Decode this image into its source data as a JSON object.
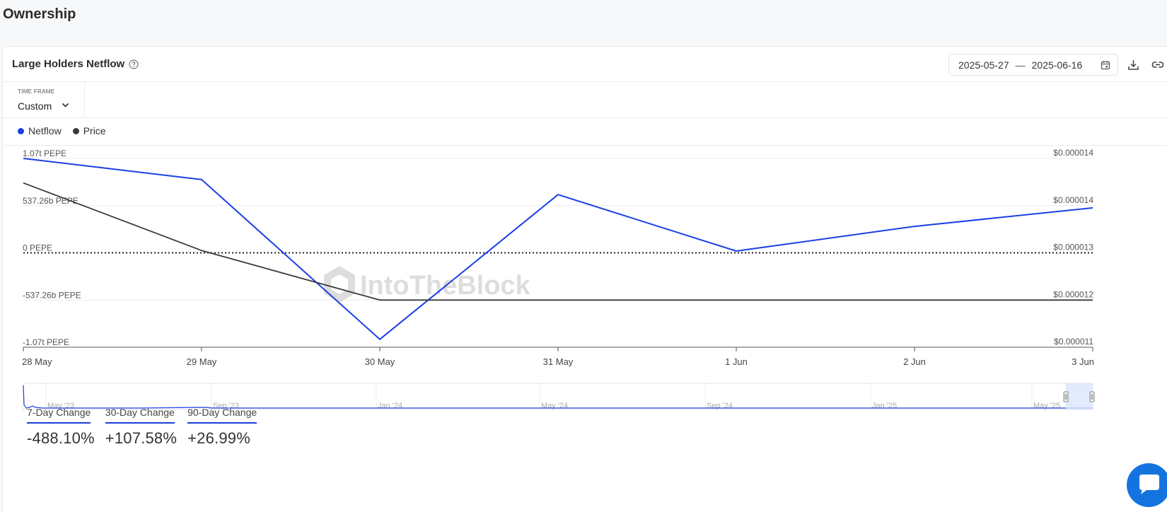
{
  "page": {
    "title": "Ownership"
  },
  "card": {
    "title": "Large Holders Netflow",
    "date_start": "2025-05-27",
    "date_sep": "—",
    "date_end": "2025-06-16"
  },
  "timeframe": {
    "label": "TIME FRAME",
    "value": "Custom"
  },
  "legend": [
    {
      "name": "Netflow",
      "color": "#1a3fe6"
    },
    {
      "name": "Price",
      "color": "#3a3a3a"
    }
  ],
  "watermark": "IntoTheBlock",
  "chart_data": {
    "type": "line",
    "x": [
      "28 May",
      "29 May",
      "30 May",
      "31 May",
      "1 Jun",
      "2 Jun",
      "3 Jun"
    ],
    "y_left_ticks": [
      "1.07t PEPE",
      "537.26b PEPE",
      "0 PEPE",
      "-537.26b PEPE",
      "-1.07t PEPE"
    ],
    "y_left_range": [
      -1.07,
      1.07
    ],
    "y_left_unit": "t PEPE",
    "y_right_ticks": [
      "$0.000014",
      "$0.000014",
      "$0.000013",
      "$0.000012",
      "$0.000011"
    ],
    "y_right_range": [
      1.1e-05,
      1.5e-05
    ],
    "series": [
      {
        "name": "Netflow",
        "axis": "left",
        "color": "#1a3fe6",
        "values": [
          1.07,
          0.83,
          -0.98,
          0.66,
          0.02,
          0.3,
          0.51
        ]
      },
      {
        "name": "Price",
        "axis": "right",
        "color": "#3a3a3a",
        "values": [
          1.448e-05,
          1.305e-05,
          1.2e-05,
          1.2e-05,
          1.2e-05,
          1.2e-05,
          1.2e-05
        ]
      }
    ],
    "zero_line": "dotted",
    "grid": true,
    "navigator": {
      "labels": [
        "May '23",
        "Sep '23",
        "Jan '24",
        "May '24",
        "Sep '24",
        "Jan '25",
        "May '25"
      ]
    }
  },
  "stats": [
    {
      "label": "7-Day Change",
      "value": "-488.10%"
    },
    {
      "label": "30-Day Change",
      "value": "+107.58%"
    },
    {
      "label": "90-Day Change",
      "value": "+26.99%"
    }
  ]
}
